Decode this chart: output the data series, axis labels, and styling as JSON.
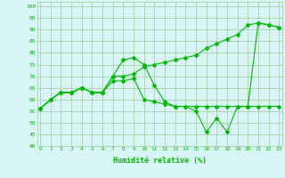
{
  "x": [
    0,
    1,
    2,
    3,
    4,
    5,
    6,
    7,
    8,
    9,
    10,
    11,
    12,
    13,
    14,
    15,
    16,
    17,
    18,
    19,
    20,
    21,
    22,
    23
  ],
  "line1": [
    56,
    60,
    63,
    63,
    65,
    63,
    63,
    70,
    77,
    78,
    75,
    66,
    59,
    57,
    57,
    55,
    46,
    52,
    46,
    57,
    57,
    93,
    92,
    91
  ],
  "line2": [
    56,
    60,
    63,
    63,
    65,
    63,
    63,
    70,
    70,
    71,
    74,
    75,
    76,
    77,
    78,
    79,
    82,
    84,
    86,
    88,
    92,
    93,
    92,
    91
  ],
  "line3": [
    56,
    60,
    63,
    63,
    65,
    63,
    63,
    68,
    68,
    69,
    60,
    59,
    58,
    57,
    57,
    57,
    57,
    57,
    57,
    57,
    57,
    57,
    57,
    57
  ],
  "bg_color": "#d8f5f5",
  "grid_color": "#a0c8a0",
  "line_color": "#00bb00",
  "xlabel": "Humidité relative (%)",
  "xlabel_fontsize": 6,
  "yticks": [
    40,
    45,
    50,
    55,
    60,
    65,
    70,
    75,
    80,
    85,
    90,
    95,
    100
  ],
  "xticks": [
    0,
    1,
    2,
    3,
    4,
    5,
    6,
    7,
    8,
    9,
    10,
    11,
    12,
    13,
    14,
    15,
    16,
    17,
    18,
    19,
    20,
    21,
    22,
    23
  ],
  "ylim": [
    40,
    102
  ],
  "xlim": [
    -0.3,
    23.3
  ],
  "marker": "D",
  "markersize": 2,
  "linewidth": 0.8
}
